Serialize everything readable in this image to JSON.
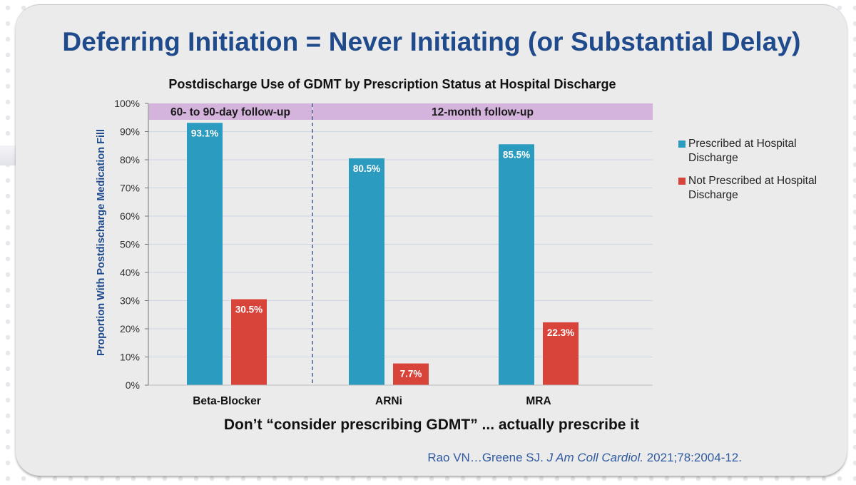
{
  "slide": {
    "title": "Deferring Initiation = Never Initiating (or Substantial Delay)",
    "takeaway": "Don’t “consider prescribing GDMT” ... actually prescribe it",
    "citation": {
      "authors": "Rao VN…Greene SJ.",
      "journal": "J Am Coll Cardiol.",
      "details": "2021;78:2004-12."
    }
  },
  "colors": {
    "title": "#1f4a8c",
    "prescribed": "#2b9bbf",
    "not_prescribed": "#d9443a",
    "header_band": "#d4b3dc",
    "axis_label": "#1f4a8c"
  },
  "chart_data": {
    "type": "bar",
    "title": "Postdischarge Use of GDMT by Prescription Status at Hospital Discharge",
    "xlabel": "",
    "ylabel": "Proportion With Postdischarge Medication Fill",
    "ylim": [
      0,
      100
    ],
    "yticks": [
      0,
      10,
      20,
      30,
      40,
      50,
      60,
      70,
      80,
      90,
      100
    ],
    "ytick_labels": [
      "0%",
      "10%",
      "20%",
      "30%",
      "40%",
      "50%",
      "60%",
      "70%",
      "80%",
      "90%",
      "100%"
    ],
    "grid": true,
    "categories": [
      "Beta-Blocker",
      "ARNi",
      "MRA"
    ],
    "series": [
      {
        "name": "Prescribed at Hospital Discharge",
        "values": [
          93.1,
          80.5,
          85.5
        ],
        "labels": [
          "93.1%",
          "80.5%",
          "85.5%"
        ]
      },
      {
        "name": "Not Prescribed at Hospital Discharge",
        "values": [
          30.5,
          7.7,
          22.3
        ],
        "labels": [
          "30.5%",
          "7.7%",
          "22.3%"
        ]
      }
    ],
    "groups": [
      {
        "label": "60- to 90-day follow-up",
        "categories": [
          "Beta-Blocker"
        ]
      },
      {
        "label": "12-month follow-up",
        "categories": [
          "ARNi",
          "MRA"
        ]
      }
    ],
    "legend_position": "right"
  }
}
